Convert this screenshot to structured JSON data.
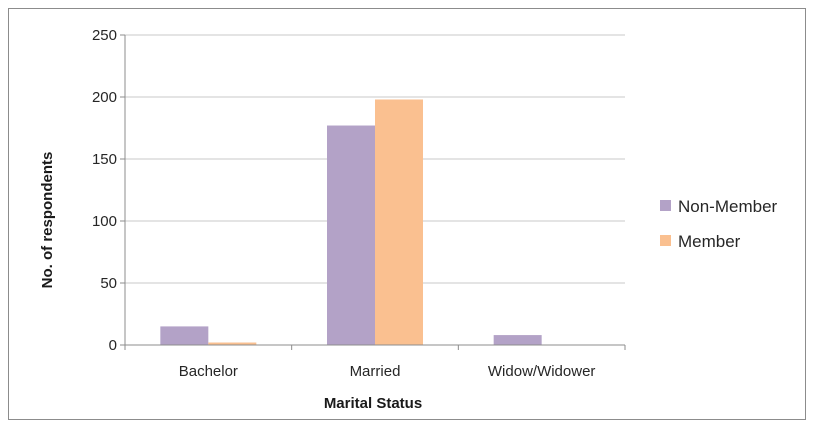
{
  "chart_data": {
    "type": "bar",
    "categories": [
      "Bachelor",
      "Married",
      "Widow/Widower"
    ],
    "series": [
      {
        "name": "Non-Member",
        "values": [
          15,
          177,
          8
        ],
        "color": "#b3a2c7"
      },
      {
        "name": "Member",
        "values": [
          2,
          198,
          0
        ],
        "color": "#fac090"
      }
    ],
    "xlabel": "Marital Status",
    "ylabel": "No. of respondents",
    "ylim": [
      0,
      250
    ],
    "yticks": [
      0,
      50,
      100,
      150,
      200,
      250
    ],
    "grid": true,
    "legend_position": "right"
  }
}
